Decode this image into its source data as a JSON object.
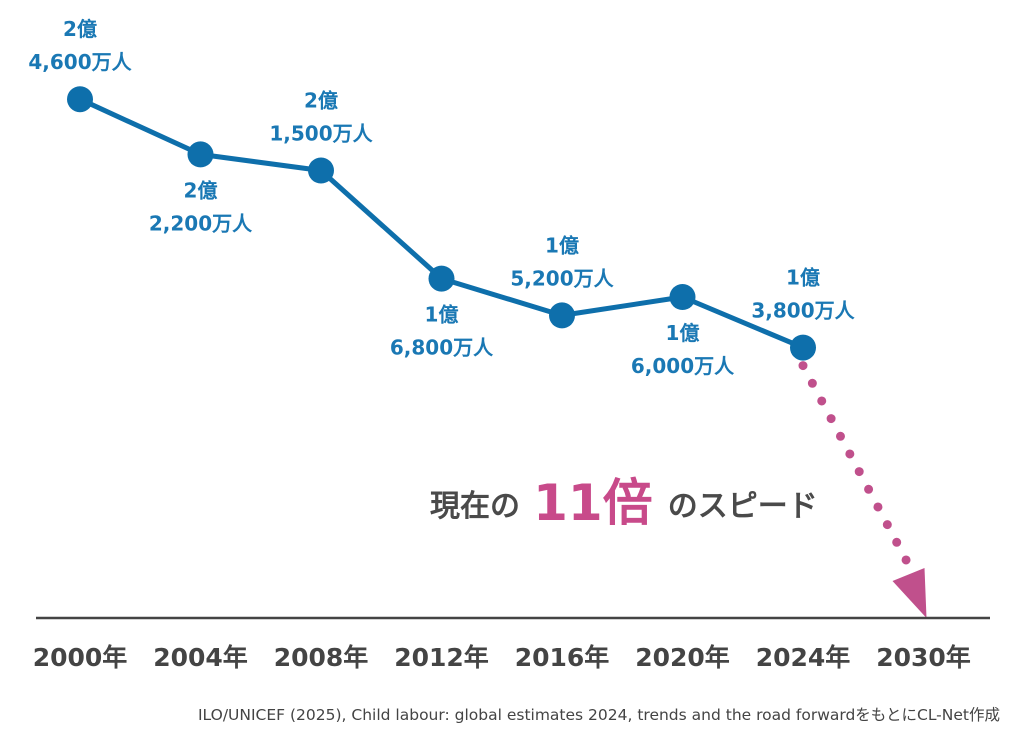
{
  "chart_data": {
    "type": "line",
    "categories": [
      "2000年",
      "2004年",
      "2008年",
      "2012年",
      "2016年",
      "2020年",
      "2024年",
      "2030年"
    ],
    "series": [
      {
        "values": [
          246000000,
          222000000,
          215000000,
          168000000,
          152000000,
          160000000,
          138000000,
          null
        ],
        "data_labels": [
          [
            "2億",
            "4,600万人"
          ],
          [
            "2億",
            "2,200万人"
          ],
          [
            "2億",
            "1,500万人"
          ],
          [
            "1億",
            "6,800万人"
          ],
          [
            "1億",
            "5,200万人"
          ],
          [
            "1億",
            "6,000万人"
          ],
          [
            "1億",
            "3,800万人"
          ],
          null
        ],
        "label_position": [
          "above",
          "below",
          "above",
          "below",
          "above",
          "below",
          "above",
          null
        ]
      }
    ],
    "projection": {
      "from": "2024年",
      "to": "2030年",
      "target_value": 0
    },
    "annotation": {
      "prefix": "現在の",
      "emphasis": "11倍",
      "suffix": "のスピード"
    },
    "title": "",
    "xlabel": "",
    "ylabel": "",
    "ylim": [
      0,
      260000000
    ],
    "grid": false,
    "legend": "none",
    "colors": {
      "line": "#0e6fab",
      "labels": "#1a78b4",
      "projection": "#c0508c",
      "axis": "#444444"
    }
  },
  "source": "ILO/UNICEF (2025), Child labour: global estimates 2024, trends and the road forwardをもとにCL-Net作成"
}
